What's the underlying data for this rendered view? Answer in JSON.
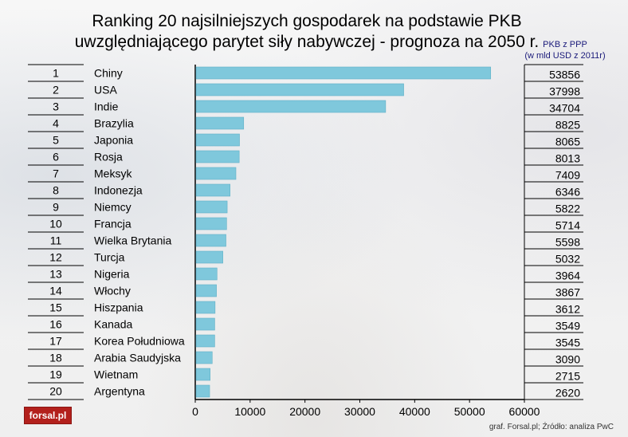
{
  "title_lines": [
    "Ranking 20 najsilniejszych gospodarek na podstawie PKB",
    "uwzględniającego parytet siły nabywczej - prognoza na 2050 r."
  ],
  "unit_note_lines": [
    "PKB z PPP",
    "(w mld USD z 2011r)"
  ],
  "logo_text": "forsal.pl",
  "source": "graf. Forsal.pl; Źródło: analiza PwC",
  "colors": {
    "bar": "#7fc8dc",
    "bar_stroke": "#5fb0c6",
    "grid": "#000000"
  },
  "chart_data": {
    "type": "bar",
    "orientation": "horizontal",
    "title": "Ranking 20 najsilniejszych gospodarek na podstawie PKB uwzględniającego parytet siły nabywczej - prognoza na 2050 r.",
    "ranks": [
      "1",
      "2",
      "3",
      "4",
      "5",
      "6",
      "7",
      "8",
      "9",
      "10",
      "11",
      "12",
      "13",
      "14",
      "15",
      "16",
      "17",
      "18",
      "19",
      "20"
    ],
    "categories": [
      "Chiny",
      "USA",
      "Indie",
      "Brazylia",
      "Japonia",
      "Rosja",
      "Meksyk",
      "Indonezja",
      "Niemcy",
      "Francja",
      "Wielka Brytania",
      "Turcja",
      "Nigeria",
      "Włochy",
      "Hiszpania",
      "Kanada",
      "Korea Południowa",
      "Arabia Saudyjska",
      "Wietnam",
      "Argentyna"
    ],
    "values": [
      53856,
      37998,
      34704,
      8825,
      8065,
      8013,
      7409,
      6346,
      5822,
      5714,
      5598,
      5032,
      3964,
      3867,
      3612,
      3549,
      3545,
      3090,
      2715,
      2620
    ],
    "value_labels": [
      "53856",
      "37998",
      "34704",
      "8825",
      "8065",
      "8013",
      "7409",
      "6346",
      "5822",
      "5714",
      "5598",
      "5032",
      "3964",
      "3867",
      "3612",
      "3549",
      "3545",
      "3090",
      "2715",
      "2620"
    ],
    "xlim": [
      0,
      60000
    ],
    "xticks": [
      0,
      10000,
      20000,
      30000,
      40000,
      50000,
      60000
    ],
    "xtick_labels": [
      "0",
      "10000",
      "20000",
      "30000",
      "40000",
      "50000",
      "60000"
    ],
    "grid": true
  }
}
